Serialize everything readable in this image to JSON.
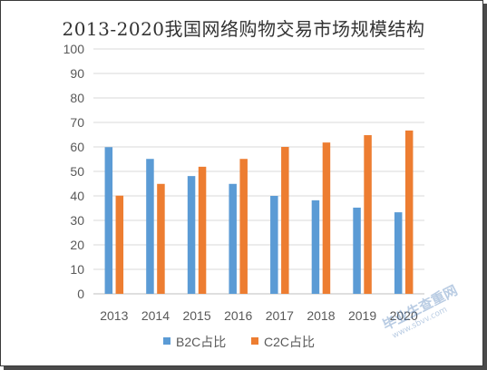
{
  "chart_data": {
    "type": "bar",
    "title": "2013-2020我国网络购物交易市场规模结构",
    "categories": [
      "2013",
      "2014",
      "2015",
      "2016",
      "2017",
      "2018",
      "2019",
      "2020"
    ],
    "series": [
      {
        "name": "B2C占比",
        "color": "#5B9BD5",
        "values": [
          59.9,
          55.1,
          48.1,
          44.9,
          40.0,
          38.2,
          35.2,
          33.3
        ]
      },
      {
        "name": "C2C占比",
        "color": "#ED7D31",
        "values": [
          40.1,
          44.9,
          51.9,
          55.1,
          60.0,
          61.8,
          64.8,
          66.7
        ]
      }
    ],
    "ylim": [
      0,
      100
    ],
    "yticks": [
      0,
      10,
      20,
      30,
      40,
      50,
      60,
      70,
      80,
      90,
      100
    ],
    "grid": true,
    "legend_position": "bottom"
  },
  "watermark": {
    "text": "毕业生查重网",
    "url": "www.sbvv.com"
  }
}
